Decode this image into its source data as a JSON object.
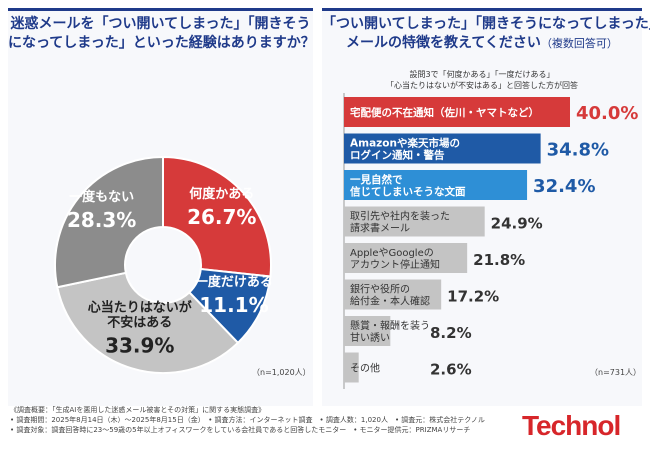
{
  "left_panel": {
    "title_lines": [
      "迷惑メールを「つい開いてしまった」「開きそう",
      "になってしまった」といった経験はありますか？"
    ],
    "n_label": "（n=1,020人）"
  },
  "right_panel": {
    "title_line1": "「つい開いてしまった」「開きそうになってしまった」",
    "title_line2": "メールの特徴を教えてください",
    "title_line2_sub": "（複数回答可）",
    "note_lines": [
      "設問3で「何度かある」「一度だけある」",
      "「心当たりはないが不安はある」と回答した方が回答"
    ],
    "n_label": "（n=731人）"
  },
  "chart_data": [
    {
      "type": "pie",
      "slices": [
        {
          "label": "何度かある",
          "value": 26.7,
          "color": "#d63a3a"
        },
        {
          "label": "一度だけある",
          "value": 11.1,
          "color": "#1f5aa6"
        },
        {
          "label": "心当たりはないが不安はある",
          "value": 33.9,
          "color": "#c4c4c4"
        },
        {
          "label": "一度もない",
          "value": 28.3,
          "color": "#8c8c8c"
        }
      ],
      "display_labels": [
        {
          "lines": [
            "何度かある"
          ],
          "value_text": "26.7%"
        },
        {
          "lines": [
            "一度だけある"
          ],
          "value_text": "11.1%"
        },
        {
          "lines": [
            "心当たりはないが",
            "不安はある"
          ],
          "value_text": "33.9%"
        },
        {
          "lines": [
            "一度もない"
          ],
          "value_text": "28.3%"
        }
      ]
    },
    {
      "type": "bar",
      "orientation": "horizontal",
      "categories": [
        "宅配便の不在通知（佐川・ヤマトなど）",
        "Amazonや楽天市場のログイン通知・警告",
        "一見自然で信じてしまいそうな文面",
        "取引先や社内を装った請求書メール",
        "AppleやGoogleのアカウント停止通知",
        "銀行や役所の給付金・本人確認",
        "懸賞・報酬を装う甘い誘い",
        "その他"
      ],
      "label_lines": [
        [
          "宅配便の不在通知（佐川・ヤマトなど）"
        ],
        [
          "Amazonや楽天市場の",
          "ログイン通知・警告"
        ],
        [
          "一見自然で",
          "信じてしまいそうな文面"
        ],
        [
          "取引先や社内を装った",
          "請求書メール"
        ],
        [
          "AppleやGoogleの",
          "アカウント停止通知"
        ],
        [
          "銀行や役所の",
          "給付金・本人確認"
        ],
        [
          "懸賞・報酬を装う",
          "甘い誘い"
        ],
        [
          "その他"
        ]
      ],
      "values": [
        40.0,
        34.8,
        32.4,
        24.9,
        21.8,
        17.2,
        8.2,
        2.6
      ],
      "value_texts": [
        "40.0%",
        "34.8%",
        "32.4%",
        "24.9%",
        "21.8%",
        "17.2%",
        "8.2%",
        "2.6%"
      ],
      "colors": [
        "#d63a3a",
        "#1f5aa6",
        "#2e8fd6",
        "#c4c4c4",
        "#c4c4c4",
        "#c4c4c4",
        "#c4c4c4",
        "#c4c4c4"
      ],
      "xlim": [
        0,
        40
      ]
    }
  ],
  "footer_lines": [
    "《調査概要：「生成AIを悪用した迷惑メール被害とその対策」に関する実態調査》",
    "• 調査期間：2025年8月14日（木）〜2025年8月15日（金）　• 調査方法：インターネット調査　• 調査人数：1,020人　• 調査元：株式会社テクノル",
    "• 調査対象：調査回答時に23〜59歳の5年以上オフィスワークをしている会社員であると回答したモニター　• モニター提供元：PRIZMAリサーチ"
  ],
  "logo_text": "Technol"
}
